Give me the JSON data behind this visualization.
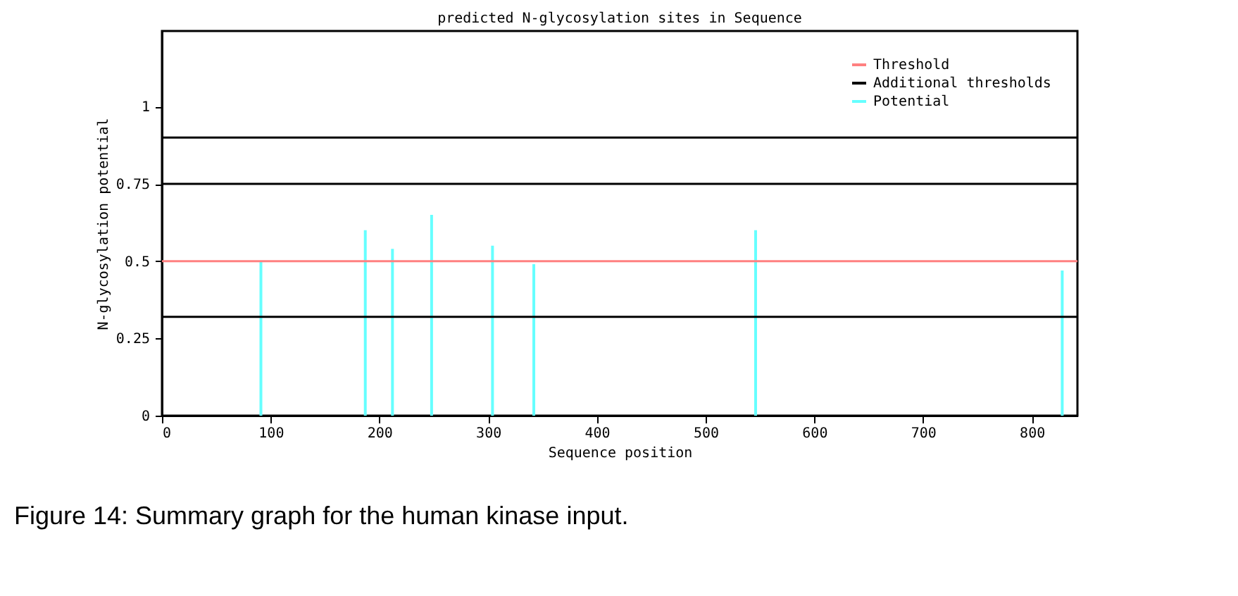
{
  "chart_data": {
    "type": "bar",
    "title": "predicted N-glycosylation sites in Sequence",
    "xlabel": "Sequence position",
    "ylabel": "N-glycosylation potential",
    "annotations": [
      "Figure 14: Summary graph for the human kinase input."
    ],
    "series": [
      {
        "name": "Potential",
        "color": "#66ffff",
        "x": [
          91,
          187,
          212,
          248,
          304,
          342,
          546,
          828
        ],
        "values": [
          0.5,
          0.6,
          0.54,
          0.65,
          0.55,
          0.49,
          0.6,
          0.47
        ]
      }
    ],
    "ref_lines": [
      {
        "axis": "y",
        "value": 0.5,
        "label": "Threshold",
        "color": "#ff8080"
      },
      {
        "axis": "y",
        "value": 0.32,
        "label": "Additional thresholds",
        "color": "#000000"
      },
      {
        "axis": "y",
        "value": 0.75,
        "color": "#000000"
      },
      {
        "axis": "y",
        "value": 0.9,
        "color": "#000000"
      }
    ],
    "xlim": [
      0,
      842
    ],
    "xticks": [
      0,
      100,
      200,
      300,
      400,
      500,
      600,
      700,
      800
    ],
    "ylim": [
      0,
      1.245
    ],
    "yticks": [
      0,
      0.25,
      0.5,
      0.75,
      1
    ],
    "grid": false,
    "legend": "top right"
  }
}
